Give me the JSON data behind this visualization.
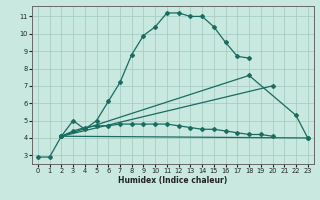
{
  "xlabel": "Humidex (Indice chaleur)",
  "bg_color": "#c8e8e0",
  "grid_color": "#a0c8c0",
  "line_color": "#1a6b60",
  "xlim": [
    -0.5,
    23.5
  ],
  "ylim": [
    2.5,
    11.6
  ],
  "xticks": [
    0,
    1,
    2,
    3,
    4,
    5,
    6,
    7,
    8,
    9,
    10,
    11,
    12,
    13,
    14,
    15,
    16,
    17,
    18,
    19,
    20,
    21,
    22,
    23
  ],
  "yticks": [
    3,
    4,
    5,
    6,
    7,
    8,
    9,
    10,
    11
  ],
  "line1_x": [
    0,
    1,
    2,
    3,
    4,
    5,
    6,
    7,
    8,
    9,
    10,
    11,
    12,
    13,
    14,
    15,
    16,
    17,
    18
  ],
  "line1_y": [
    2.9,
    2.9,
    4.1,
    5.0,
    4.5,
    5.0,
    6.1,
    7.2,
    8.8,
    9.9,
    10.4,
    11.2,
    11.2,
    11.0,
    11.0,
    10.4,
    9.5,
    8.7,
    8.6
  ],
  "line2_x": [
    2,
    3,
    4,
    5,
    6,
    7,
    8,
    9,
    10,
    11,
    12,
    13,
    14,
    15,
    16,
    17,
    18,
    19,
    20
  ],
  "line2_y": [
    4.1,
    4.4,
    4.6,
    4.7,
    4.7,
    4.8,
    4.8,
    4.8,
    4.8,
    4.8,
    4.7,
    4.6,
    4.5,
    4.5,
    4.4,
    4.3,
    4.2,
    4.2,
    4.1
  ],
  "line3_x": [
    2,
    23
  ],
  "line3_y": [
    4.1,
    4.0
  ],
  "line4_x": [
    2,
    20
  ],
  "line4_y": [
    4.1,
    7.0
  ],
  "line5_x": [
    2,
    18,
    22,
    23
  ],
  "line5_y": [
    4.1,
    7.6,
    5.3,
    4.0
  ]
}
